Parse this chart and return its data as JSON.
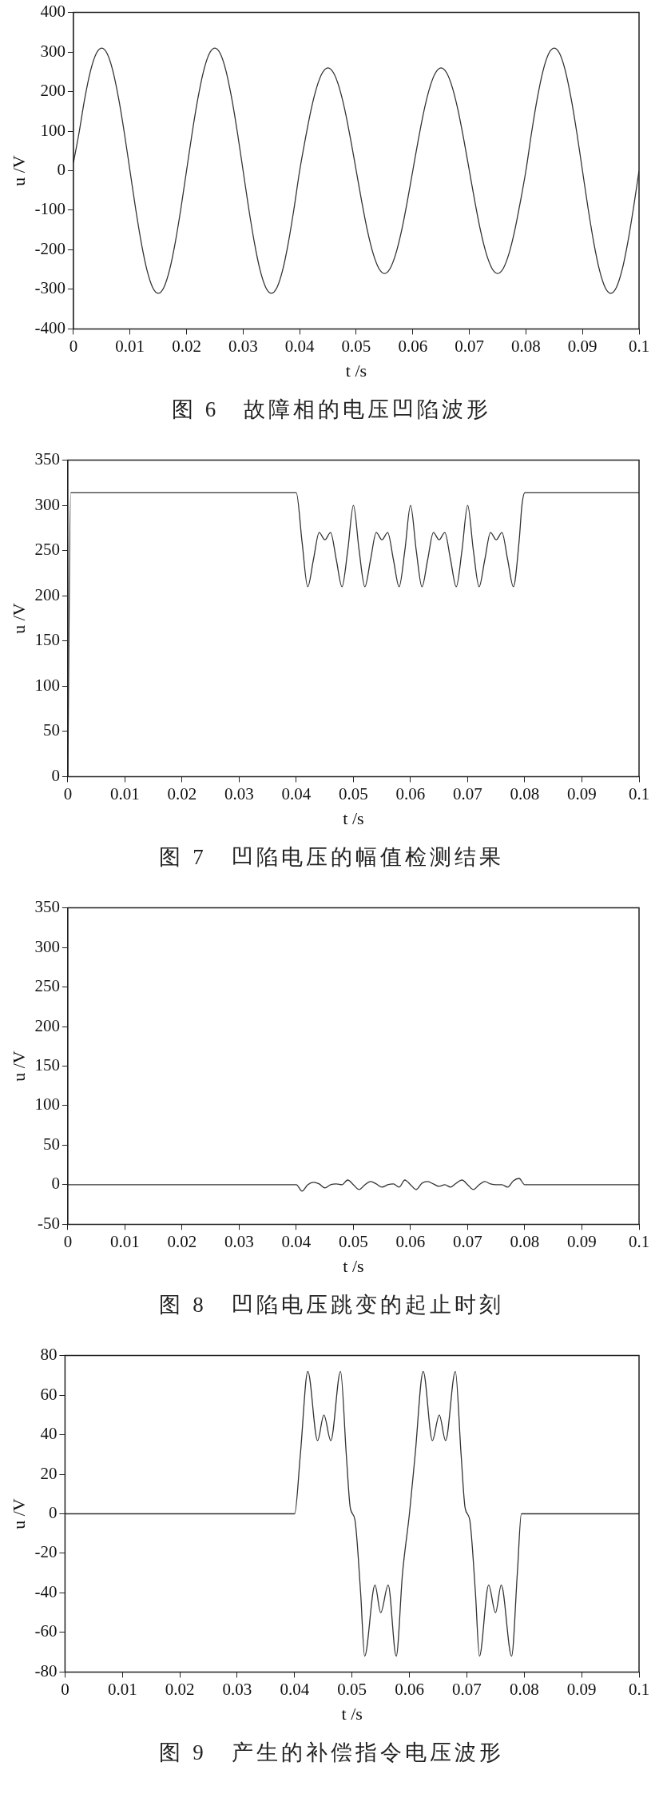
{
  "chart_data": [
    {
      "type": "line",
      "title": "图 6　故障相的电压凹陷波形",
      "xlabel": "t /s",
      "ylabel": "u /V",
      "xlim": [
        0,
        0.1
      ],
      "xticks": [
        0,
        0.01,
        0.02,
        0.03,
        0.04,
        0.05,
        0.06,
        0.07,
        0.08,
        0.09,
        0.1
      ],
      "ylim": [
        -400,
        400
      ],
      "yticks": [
        -400,
        -300,
        -200,
        -100,
        0,
        100,
        200,
        300,
        400
      ],
      "grid": false,
      "legend": false,
      "marker": "none",
      "line_style": "solid",
      "color": "#333333",
      "x": [
        0,
        0.001,
        0.002,
        0.003,
        0.004,
        0.005,
        0.006,
        0.007,
        0.008,
        0.009,
        0.01,
        0.011,
        0.012,
        0.013,
        0.014,
        0.015,
        0.016,
        0.017,
        0.018,
        0.019,
        0.02,
        0.021,
        0.022,
        0.023,
        0.024,
        0.025,
        0.026,
        0.027,
        0.028,
        0.029,
        0.03,
        0.031,
        0.032,
        0.033,
        0.034,
        0.035,
        0.036,
        0.037,
        0.038,
        0.039,
        0.04,
        0.041,
        0.042,
        0.043,
        0.044,
        0.045,
        0.046,
        0.047,
        0.048,
        0.049,
        0.05,
        0.051,
        0.052,
        0.053,
        0.054,
        0.055,
        0.056,
        0.057,
        0.058,
        0.059,
        0.06,
        0.061,
        0.062,
        0.063,
        0.064,
        0.065,
        0.066,
        0.067,
        0.068,
        0.069,
        0.07,
        0.071,
        0.072,
        0.073,
        0.074,
        0.075,
        0.076,
        0.077,
        0.078,
        0.079,
        0.08,
        0.081,
        0.082,
        0.083,
        0.084,
        0.085,
        0.086,
        0.087,
        0.088,
        0.089,
        0.09,
        0.091,
        0.092,
        0.093,
        0.094,
        0.095,
        0.096,
        0.097,
        0.098,
        0.099,
        0.1
      ],
      "values": [
        20,
        96,
        182,
        251,
        295,
        310,
        295,
        251,
        182,
        96,
        0,
        -96,
        -182,
        -251,
        -295,
        -310,
        -295,
        -251,
        -182,
        -96,
        0,
        96,
        182,
        251,
        295,
        310,
        295,
        251,
        182,
        96,
        0,
        -96,
        -182,
        -251,
        -295,
        -310,
        -295,
        -251,
        -182,
        -96,
        0,
        80,
        153,
        210,
        247,
        260,
        247,
        210,
        153,
        80,
        0,
        -80,
        -153,
        -210,
        -247,
        -260,
        -247,
        -210,
        -153,
        -80,
        0,
        80,
        153,
        210,
        247,
        260,
        247,
        210,
        153,
        80,
        0,
        -80,
        -153,
        -210,
        -247,
        -260,
        -247,
        -210,
        -153,
        -80,
        0,
        96,
        182,
        251,
        295,
        310,
        295,
        251,
        182,
        96,
        0,
        -96,
        -182,
        -251,
        -295,
        -310,
        -295,
        -251,
        -182,
        -96,
        0
      ]
    },
    {
      "type": "line",
      "title": "图 7　凹陷电压的幅值检测结果",
      "xlabel": "t /s",
      "ylabel": "u /V",
      "xlim": [
        0,
        0.1
      ],
      "xticks": [
        0,
        0.01,
        0.02,
        0.03,
        0.04,
        0.05,
        0.06,
        0.07,
        0.08,
        0.09,
        0.1
      ],
      "ylim": [
        0,
        350
      ],
      "yticks": [
        0,
        50,
        100,
        150,
        200,
        250,
        300,
        350
      ],
      "grid": false,
      "legend": false,
      "marker": "none",
      "line_style": "solid",
      "color": "#333333",
      "x": [
        0,
        0.0005,
        0.04,
        0.041,
        0.042,
        0.043,
        0.044,
        0.045,
        0.046,
        0.047,
        0.048,
        0.049,
        0.05,
        0.051,
        0.052,
        0.053,
        0.054,
        0.055,
        0.056,
        0.057,
        0.058,
        0.059,
        0.06,
        0.061,
        0.062,
        0.063,
        0.064,
        0.065,
        0.066,
        0.067,
        0.068,
        0.069,
        0.07,
        0.071,
        0.072,
        0.073,
        0.074,
        0.075,
        0.076,
        0.077,
        0.078,
        0.079,
        0.0795,
        0.08,
        0.1
      ],
      "values": [
        0,
        314,
        314,
        260,
        210,
        240,
        270,
        262,
        270,
        240,
        210,
        250,
        300,
        250,
        210,
        240,
        270,
        262,
        270,
        240,
        210,
        250,
        300,
        250,
        210,
        240,
        270,
        262,
        270,
        240,
        210,
        250,
        300,
        250,
        210,
        240,
        270,
        262,
        270,
        240,
        210,
        260,
        300,
        314,
        314
      ]
    },
    {
      "type": "line",
      "title": "图 8　凹陷电压跳变的起止时刻",
      "xlabel": "t /s",
      "ylabel": "u /V",
      "xlim": [
        0,
        0.1
      ],
      "xticks": [
        0,
        0.01,
        0.02,
        0.03,
        0.04,
        0.05,
        0.06,
        0.07,
        0.08,
        0.09,
        0.1
      ],
      "ylim": [
        -50,
        350
      ],
      "yticks": [
        -50,
        0,
        50,
        100,
        150,
        200,
        250,
        300,
        350
      ],
      "grid": false,
      "legend": false,
      "marker": "none",
      "line_style": "solid",
      "color": "#333333",
      "x": [
        0,
        0.04,
        0.041,
        0.042,
        0.043,
        0.044,
        0.045,
        0.046,
        0.047,
        0.048,
        0.049,
        0.05,
        0.051,
        0.052,
        0.053,
        0.054,
        0.055,
        0.056,
        0.057,
        0.058,
        0.059,
        0.06,
        0.061,
        0.062,
        0.063,
        0.064,
        0.065,
        0.066,
        0.067,
        0.068,
        0.069,
        0.07,
        0.071,
        0.072,
        0.073,
        0.074,
        0.075,
        0.076,
        0.077,
        0.078,
        0.079,
        0.08,
        0.1
      ],
      "values": [
        0,
        0,
        -8,
        0,
        3,
        1,
        -4,
        0,
        1,
        0,
        6,
        0,
        -6,
        0,
        4,
        1,
        -3,
        0,
        1,
        -3,
        6,
        0,
        -6,
        2,
        4,
        1,
        -2,
        0,
        -3,
        2,
        6,
        0,
        -6,
        0,
        4,
        1,
        0,
        0,
        -3,
        5,
        8,
        0,
        0
      ]
    },
    {
      "type": "line",
      "title": "图 9　产生的补偿指令电压波形",
      "xlabel": "t /s",
      "ylabel": "u /V",
      "xlim": [
        0,
        0.1
      ],
      "xticks": [
        0,
        0.01,
        0.02,
        0.03,
        0.04,
        0.05,
        0.06,
        0.07,
        0.08,
        0.09,
        0.1
      ],
      "ylim": [
        -80,
        80
      ],
      "yticks": [
        -80,
        -60,
        -40,
        -20,
        0,
        20,
        40,
        60,
        80
      ],
      "grid": false,
      "legend": false,
      "marker": "none",
      "line_style": "solid",
      "color": "#333333",
      "x": [
        0,
        0.04,
        0.041,
        0.0423,
        0.044,
        0.0451,
        0.0463,
        0.048,
        0.049,
        0.0497,
        0.0505,
        0.0515,
        0.0522,
        0.054,
        0.055,
        0.0563,
        0.0577,
        0.0588,
        0.06,
        0.061,
        0.0624,
        0.064,
        0.0652,
        0.0663,
        0.068,
        0.069,
        0.0697,
        0.0705,
        0.0715,
        0.0722,
        0.0738,
        0.075,
        0.076,
        0.0778,
        0.0788,
        0.0795,
        0.1
      ],
      "values": [
        0,
        0,
        30,
        72,
        37,
        50,
        37,
        72,
        30,
        3,
        -3,
        -40,
        -72,
        -36,
        -50,
        -36,
        -72,
        -30,
        0,
        30,
        72,
        37,
        50,
        37,
        72,
        30,
        3,
        -3,
        -40,
        -72,
        -36,
        -50,
        -36,
        -72,
        -30,
        0,
        0
      ]
    }
  ]
}
